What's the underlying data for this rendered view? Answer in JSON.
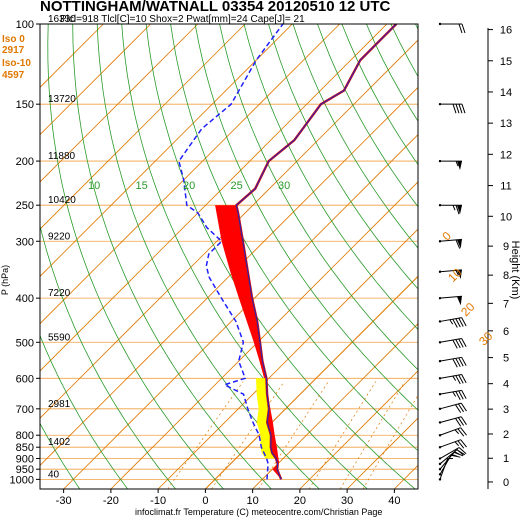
{
  "header": {
    "title": "NOTTINGHAM/WATNALL 03354 20120510 12 UTC",
    "subtitle": "Plcl=918 Tlcl[C]=10 Shox=2 Pwat[mm]=24 Cape[J]= 21"
  },
  "iso_info": {
    "iso0_label": "Iso 0",
    "iso0_value": "2917",
    "iso10_label": "Iso-10",
    "iso10_value": "4597"
  },
  "footer": "infoclimat.fr Temperature (C) meteocentre.com/Christian Page",
  "colors": {
    "temperature": "#d01010",
    "temperature_inner": "#2020c0",
    "dewpoint": "#2020ff",
    "cape_fill": "#ff0000",
    "parcel_fill": "#ffff00",
    "isotherm": "#e07800",
    "dry_adiabat": "#2a9a2a",
    "isobar_grid": "#f0a040",
    "mixing_ratio": "#e07800"
  },
  "chart_data": {
    "type": "skew-t log-p sounding",
    "xlabel": "Temperature (C)",
    "ylabel": "P (hPa)",
    "y2label": "Height (Km)",
    "xlim": [
      -35,
      45
    ],
    "ylim": [
      1050,
      100
    ],
    "x_ticks": [
      -30,
      -20,
      -10,
      0,
      10,
      20,
      30,
      40
    ],
    "pressure_ticks": [
      1000,
      950,
      900,
      850,
      800,
      700,
      600,
      500,
      400,
      300,
      250,
      200,
      150,
      100
    ],
    "pressure_tick_labels": [
      "1000",
      "950",
      "900",
      "850",
      "800",
      "700",
      "600",
      "500",
      "400",
      "300",
      "250",
      "200",
      "150",
      "100"
    ],
    "height_ticks_km": [
      0,
      1,
      2,
      3,
      4,
      5,
      6,
      7,
      8,
      9,
      10,
      11,
      12,
      13,
      14,
      15,
      16
    ],
    "height_tick_labels": [
      "0",
      "1",
      "2",
      "3",
      "4",
      "5",
      "6",
      "7",
      "8",
      "9",
      "10",
      "11",
      "12",
      "13",
      "14",
      "15",
      "16"
    ],
    "geopotential_labels": [
      {
        "p": 100,
        "text": "16330"
      },
      {
        "p": 150,
        "text": "13720"
      },
      {
        "p": 200,
        "text": "11880"
      },
      {
        "p": 250,
        "text": "10420"
      },
      {
        "p": 300,
        "text": "9220"
      },
      {
        "p": 400,
        "text": "7220"
      },
      {
        "p": 500,
        "text": "5590"
      },
      {
        "p": 700,
        "text": "2981"
      },
      {
        "p": 850,
        "text": "1402"
      },
      {
        "p": 1000,
        "text": "40"
      }
    ],
    "isotherm_labels": [
      {
        "t": 0,
        "text": "0"
      },
      {
        "t": 10,
        "text": "10"
      },
      {
        "t": 20,
        "text": "20"
      },
      {
        "t": 30,
        "text": "30"
      }
    ],
    "dry_adiabat_labels": [
      {
        "theta": 10,
        "text": "10"
      },
      {
        "theta": 15,
        "text": "15"
      },
      {
        "theta": 20,
        "text": "20"
      },
      {
        "theta": 25,
        "text": "25"
      },
      {
        "theta": 30,
        "text": "30"
      }
    ],
    "temperature_profile": [
      {
        "p": 1000,
        "t": 14.0
      },
      {
        "p": 975,
        "t": 12.5
      },
      {
        "p": 950,
        "t": 11.0
      },
      {
        "p": 925,
        "t": 10.0
      },
      {
        "p": 900,
        "t": 8.5
      },
      {
        "p": 875,
        "t": 6.5
      },
      {
        "p": 850,
        "t": 5.0
      },
      {
        "p": 800,
        "t": 2.5
      },
      {
        "p": 750,
        "t": -1.0
      },
      {
        "p": 700,
        "t": -3.5
      },
      {
        "p": 650,
        "t": -7.0
      },
      {
        "p": 600,
        "t": -10.5
      },
      {
        "p": 550,
        "t": -15.0
      },
      {
        "p": 500,
        "t": -19.5
      },
      {
        "p": 450,
        "t": -24.5
      },
      {
        "p": 400,
        "t": -30.5
      },
      {
        "p": 350,
        "t": -37.0
      },
      {
        "p": 300,
        "t": -44.5
      },
      {
        "p": 260,
        "t": -51.5
      },
      {
        "p": 250,
        "t": -53.5
      },
      {
        "p": 230,
        "t": -53.0
      },
      {
        "p": 200,
        "t": -56.0
      },
      {
        "p": 180,
        "t": -55.0
      },
      {
        "p": 150,
        "t": -57.0
      },
      {
        "p": 140,
        "t": -55.0
      },
      {
        "p": 120,
        "t": -58.0
      },
      {
        "p": 100,
        "t": -58.0
      }
    ],
    "dewpoint_profile": [
      {
        "p": 1000,
        "t": 11.0
      },
      {
        "p": 975,
        "t": 10.0
      },
      {
        "p": 950,
        "t": 9.0
      },
      {
        "p": 925,
        "t": 8.0
      },
      {
        "p": 900,
        "t": 6.5
      },
      {
        "p": 850,
        "t": 3.0
      },
      {
        "p": 800,
        "t": 0.0
      },
      {
        "p": 750,
        "t": -4.0
      },
      {
        "p": 700,
        "t": -8.0
      },
      {
        "p": 650,
        "t": -12.0
      },
      {
        "p": 620,
        "t": -18.0
      },
      {
        "p": 600,
        "t": -15.0
      },
      {
        "p": 550,
        "t": -20.0
      },
      {
        "p": 500,
        "t": -23.0
      },
      {
        "p": 450,
        "t": -29.0
      },
      {
        "p": 400,
        "t": -37.0
      },
      {
        "p": 360,
        "t": -44.0
      },
      {
        "p": 340,
        "t": -47.0
      },
      {
        "p": 320,
        "t": -49.0
      },
      {
        "p": 300,
        "t": -49.0
      },
      {
        "p": 280,
        "t": -55.0
      },
      {
        "p": 260,
        "t": -60.0
      },
      {
        "p": 250,
        "t": -64.0
      },
      {
        "p": 220,
        "t": -70.0
      },
      {
        "p": 200,
        "t": -75.0
      },
      {
        "p": 170,
        "t": -77.0
      },
      {
        "p": 150,
        "t": -76.0
      },
      {
        "p": 120,
        "t": -80.0
      },
      {
        "p": 100,
        "t": -82.0
      }
    ],
    "parcel_profile": [
      {
        "p": 1000,
        "t": 14.0
      },
      {
        "p": 950,
        "t": 10.0
      },
      {
        "p": 918,
        "t": 10.0
      },
      {
        "p": 900,
        "t": 9.0
      },
      {
        "p": 850,
        "t": 6.3
      },
      {
        "p": 800,
        "t": 3.3
      },
      {
        "p": 750,
        "t": 0.2
      },
      {
        "p": 700,
        "t": -3.2
      },
      {
        "p": 650,
        "t": -6.9
      },
      {
        "p": 600,
        "t": -11.0
      },
      {
        "p": 550,
        "t": -15.6
      },
      {
        "p": 500,
        "t": -20.8
      },
      {
        "p": 450,
        "t": -26.7
      },
      {
        "p": 400,
        "t": -33.3
      },
      {
        "p": 350,
        "t": -40.7
      },
      {
        "p": 300,
        "t": -49.0
      },
      {
        "p": 250,
        "t": -58.0
      }
    ],
    "wind_levels": [
      {
        "p": 1000,
        "dir": 200,
        "spd": 5
      },
      {
        "p": 975,
        "dir": 210,
        "spd": 10
      },
      {
        "p": 950,
        "dir": 220,
        "spd": 15
      },
      {
        "p": 925,
        "dir": 230,
        "spd": 15
      },
      {
        "p": 900,
        "dir": 240,
        "spd": 20
      },
      {
        "p": 850,
        "dir": 250,
        "spd": 25
      },
      {
        "p": 800,
        "dir": 250,
        "spd": 25
      },
      {
        "p": 750,
        "dir": 255,
        "spd": 30
      },
      {
        "p": 700,
        "dir": 255,
        "spd": 30
      },
      {
        "p": 650,
        "dir": 260,
        "spd": 35
      },
      {
        "p": 600,
        "dir": 260,
        "spd": 35
      },
      {
        "p": 550,
        "dir": 260,
        "spd": 40
      },
      {
        "p": 500,
        "dir": 260,
        "spd": 40
      },
      {
        "p": 450,
        "dir": 260,
        "spd": 45
      },
      {
        "p": 400,
        "dir": 265,
        "spd": 50
      },
      {
        "p": 350,
        "dir": 265,
        "spd": 55
      },
      {
        "p": 300,
        "dir": 265,
        "spd": 60
      },
      {
        "p": 250,
        "dir": 270,
        "spd": 65
      },
      {
        "p": 200,
        "dir": 270,
        "spd": 55
      },
      {
        "p": 150,
        "dir": 270,
        "spd": 40
      },
      {
        "p": 100,
        "dir": 270,
        "spd": 20
      }
    ],
    "hodograph_note": ""
  }
}
